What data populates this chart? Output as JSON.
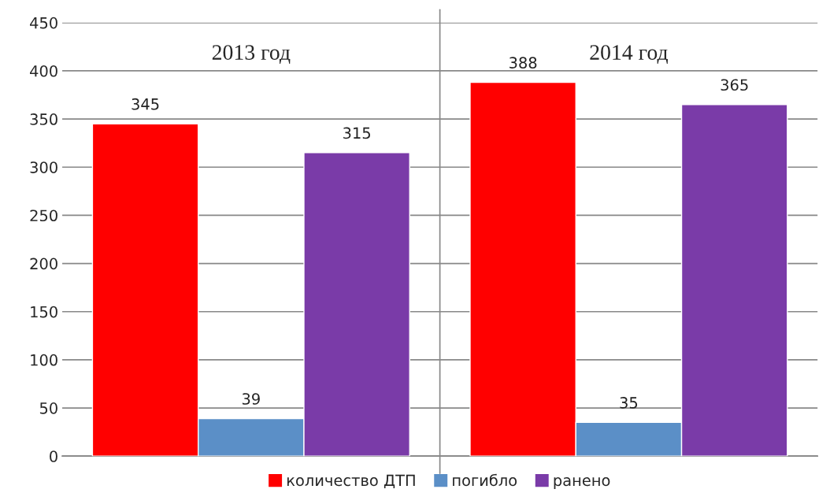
{
  "chart_data": {
    "type": "bar",
    "categories": [
      "2013 год",
      "2014 год"
    ],
    "series": [
      {
        "name": "количество ДТП",
        "color": "#ff0000",
        "values": [
          345,
          388
        ]
      },
      {
        "name": "погибло",
        "color": "#5b8fc7",
        "values": [
          39,
          35
        ]
      },
      {
        "name": "ранено",
        "color": "#7a3ba8",
        "values": [
          315,
          365
        ]
      }
    ],
    "ylim": [
      0,
      450
    ],
    "yticks": [
      0,
      50,
      100,
      150,
      200,
      250,
      300,
      350,
      400,
      450
    ],
    "grid": "y",
    "legend": "bottom",
    "data_labels": true
  }
}
